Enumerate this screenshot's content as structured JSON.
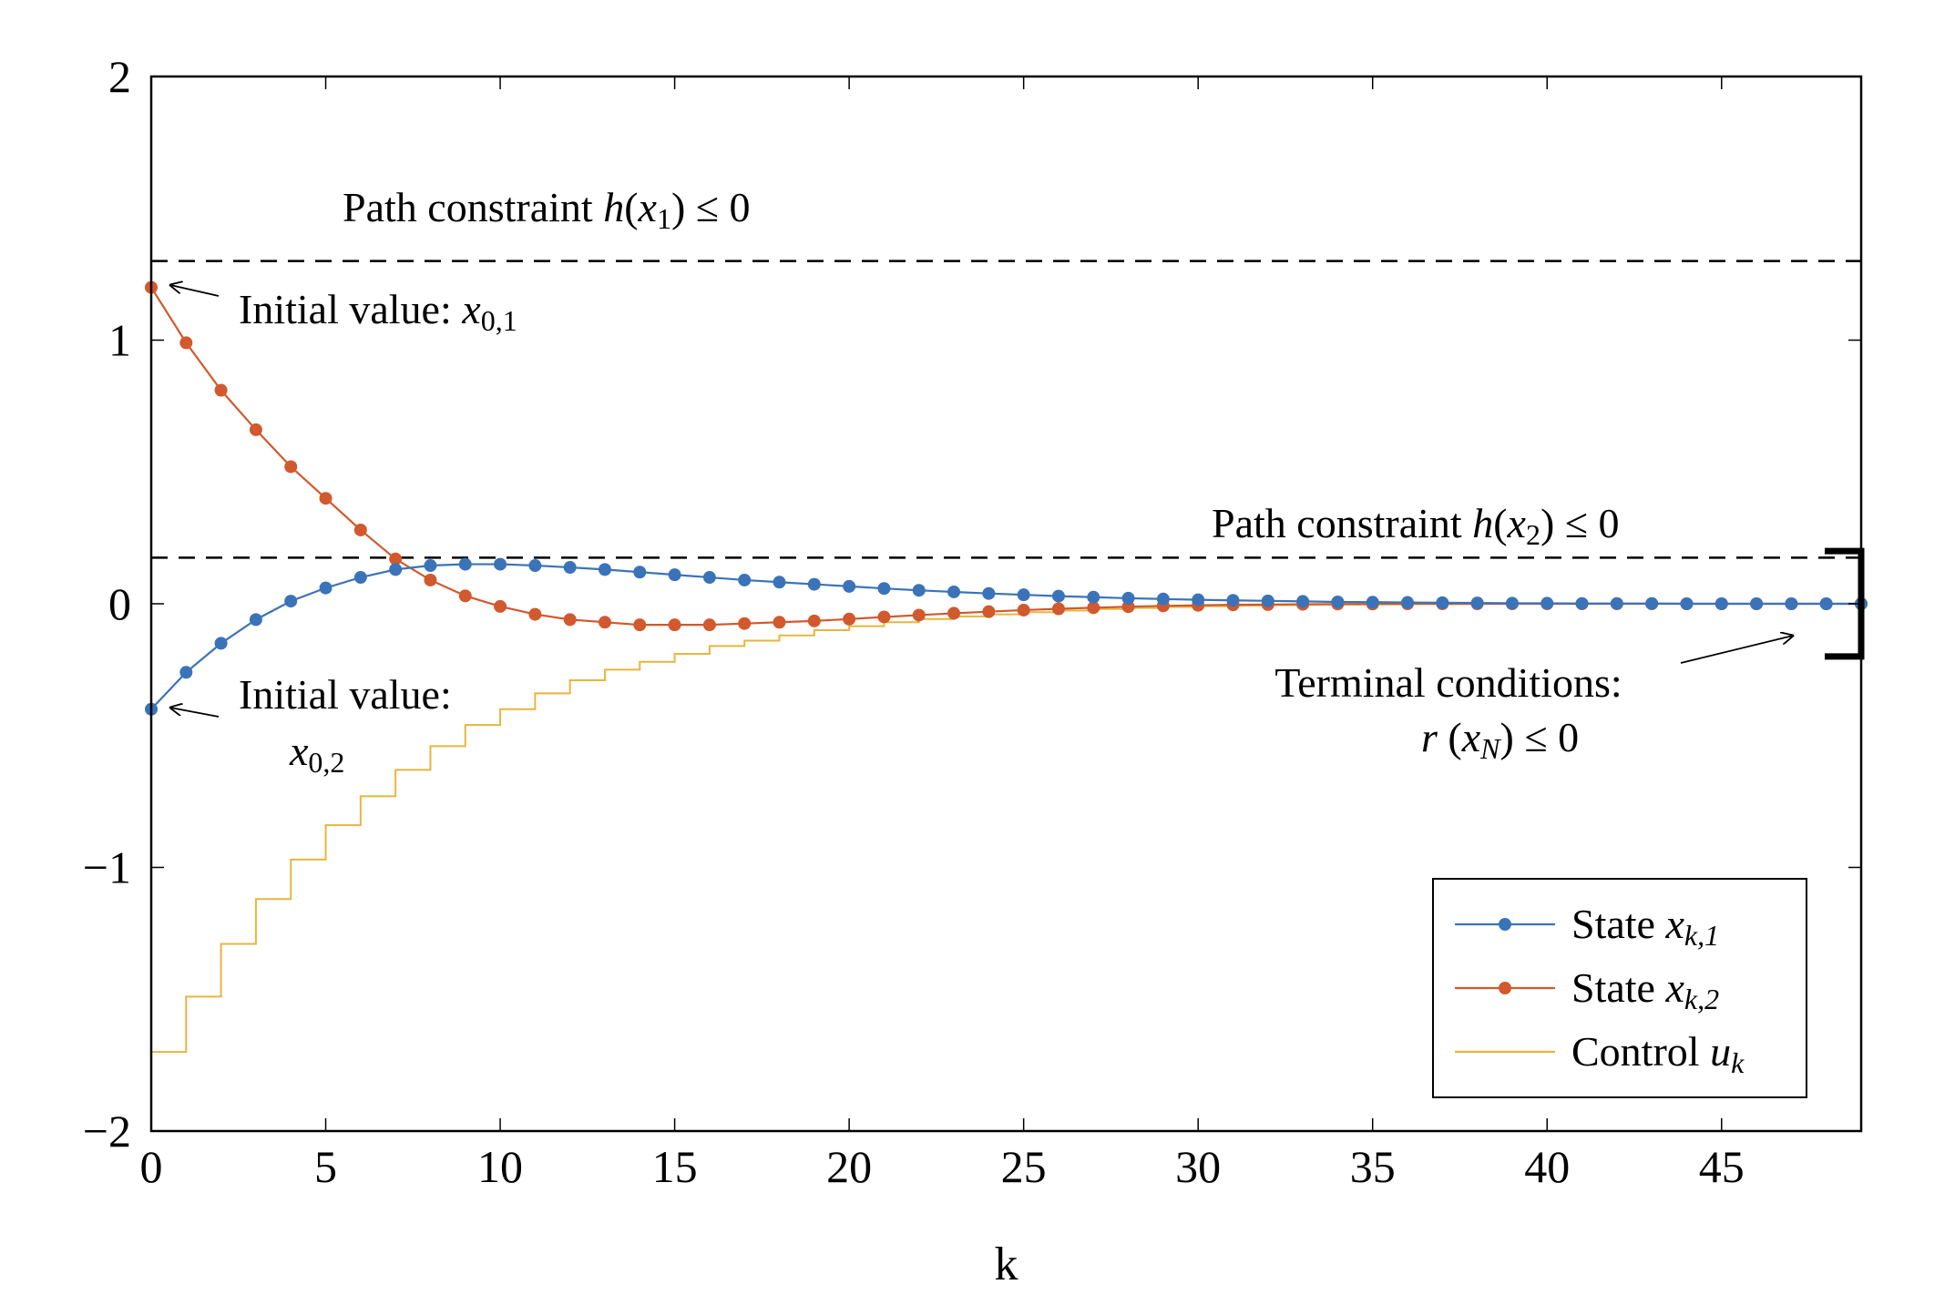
{
  "chart_data": {
    "type": "line",
    "xlabel": "k",
    "ylabel": "",
    "xlim": [
      0,
      49
    ],
    "ylim": [
      -2,
      2
    ],
    "x_ticks": [
      0,
      5,
      10,
      15,
      20,
      25,
      30,
      35,
      40,
      45
    ],
    "y_ticks": [
      -2,
      -1,
      0,
      1,
      2
    ],
    "x_tick_labels": [
      "0",
      "5",
      "10",
      "15",
      "20",
      "25",
      "30",
      "35",
      "40",
      "45"
    ],
    "y_tick_labels": [
      "−2",
      "−1",
      "0",
      "1",
      "2"
    ],
    "grid": false,
    "legend_position": "bottom-right",
    "colors": {
      "state1": "#3b73b9",
      "state2": "#d1592d",
      "control": "#e8b53d",
      "constraint": "#000000"
    },
    "series": [
      {
        "name": "State x_{k,1}",
        "legend_parts": {
          "prefix": "State ",
          "var": "x",
          "sub": "k,1"
        },
        "style": "line-markers",
        "x": [
          0,
          1,
          2,
          3,
          4,
          5,
          6,
          7,
          8,
          9,
          10,
          11,
          12,
          13,
          14,
          15,
          16,
          17,
          18,
          19,
          20,
          21,
          22,
          23,
          24,
          25,
          26,
          27,
          28,
          29,
          30,
          31,
          32,
          33,
          34,
          35,
          36,
          37,
          38,
          39,
          40,
          41,
          42,
          43,
          44,
          45,
          46,
          47,
          48,
          49
        ],
        "values": [
          -0.4,
          -0.26,
          -0.15,
          -0.06,
          0.01,
          0.06,
          0.1,
          0.13,
          0.145,
          0.15,
          0.15,
          0.145,
          0.138,
          0.13,
          0.12,
          0.11,
          0.1,
          0.09,
          0.082,
          0.074,
          0.066,
          0.058,
          0.051,
          0.045,
          0.039,
          0.034,
          0.029,
          0.025,
          0.021,
          0.018,
          0.015,
          0.013,
          0.011,
          0.009,
          0.007,
          0.006,
          0.005,
          0.004,
          0.003,
          0.002,
          0.002,
          0.001,
          0.001,
          0.001,
          0.0,
          0.0,
          0.0,
          0.0,
          0.0,
          0.0
        ]
      },
      {
        "name": "State x_{k,2}",
        "legend_parts": {
          "prefix": "State ",
          "var": "x",
          "sub": "k,2"
        },
        "style": "line-markers",
        "x": [
          0,
          1,
          2,
          3,
          4,
          5,
          6,
          7,
          8,
          9,
          10,
          11,
          12,
          13,
          14,
          15,
          16,
          17,
          18,
          19,
          20,
          21,
          22,
          23,
          24,
          25,
          26,
          27,
          28,
          29,
          30,
          31,
          32,
          33,
          34,
          35,
          36,
          37,
          38,
          39,
          40,
          41,
          42,
          43,
          44,
          45,
          46,
          47,
          48,
          49
        ],
        "values": [
          1.2,
          0.99,
          0.81,
          0.66,
          0.52,
          0.4,
          0.28,
          0.17,
          0.09,
          0.03,
          -0.01,
          -0.04,
          -0.06,
          -0.07,
          -0.08,
          -0.08,
          -0.08,
          -0.075,
          -0.07,
          -0.065,
          -0.058,
          -0.05,
          -0.043,
          -0.036,
          -0.03,
          -0.024,
          -0.019,
          -0.015,
          -0.011,
          -0.008,
          -0.006,
          -0.004,
          -0.003,
          -0.002,
          -0.001,
          -0.001,
          0.0,
          0.0,
          0.0,
          0.0,
          0.0,
          0.0,
          0.0,
          0.0,
          0.0,
          0.0,
          0.0,
          0.0,
          0.0,
          0.0
        ]
      },
      {
        "name": "Control u_k",
        "legend_parts": {
          "prefix": "Control ",
          "var": "u",
          "sub": "k"
        },
        "style": "step",
        "x": [
          0,
          1,
          2,
          3,
          4,
          5,
          6,
          7,
          8,
          9,
          10,
          11,
          12,
          13,
          14,
          15,
          16,
          17,
          18,
          19,
          20,
          21,
          22,
          23,
          24,
          25,
          26,
          27,
          28,
          29,
          30,
          31,
          32,
          33,
          34,
          35,
          36,
          37,
          38,
          39,
          40,
          41,
          42,
          43,
          44,
          45,
          46,
          47,
          48,
          49
        ],
        "values": [
          -1.7,
          -1.49,
          -1.29,
          -1.12,
          -0.97,
          -0.84,
          -0.73,
          -0.63,
          -0.54,
          -0.46,
          -0.4,
          -0.34,
          -0.29,
          -0.25,
          -0.22,
          -0.19,
          -0.16,
          -0.14,
          -0.12,
          -0.1,
          -0.085,
          -0.07,
          -0.058,
          -0.048,
          -0.04,
          -0.032,
          -0.026,
          -0.02,
          -0.016,
          -0.012,
          -0.009,
          -0.007,
          -0.005,
          -0.004,
          -0.003,
          -0.002,
          -0.001,
          -0.001,
          0.0,
          0.0,
          0.0,
          0.0,
          0.0,
          0.0,
          0.0,
          0.0,
          0.0,
          0.0,
          0.0,
          0.0
        ]
      }
    ],
    "constraints": [
      {
        "y": 1.3,
        "style": "dashed"
      },
      {
        "y": 0.175,
        "style": "dashed"
      }
    ],
    "terminal_bracket": {
      "x": 49,
      "y_top": 0.2,
      "y_bottom": -0.2
    },
    "annotations": {
      "path1": {
        "prefix": "Path constraint ",
        "func": "h",
        "open": "(",
        "var": "x",
        "sub": "1",
        "close": ")",
        "suffix": " ≤ 0"
      },
      "path2": {
        "prefix": "Path constraint ",
        "func": "h",
        "open": "(",
        "var": "x",
        "sub": "2",
        "close": ")",
        "suffix": " ≤ 0"
      },
      "init1": {
        "prefix": "Initial value: ",
        "var": "x",
        "sub": "0,1"
      },
      "init2": {
        "line1": "Initial value:",
        "var": "x",
        "sub": "0,2"
      },
      "terminal": {
        "line1": "Terminal conditions:",
        "func": "r",
        "open": " (",
        "var": "x",
        "sub": "N",
        "close": ")",
        "suffix": " ≤ 0"
      }
    }
  }
}
